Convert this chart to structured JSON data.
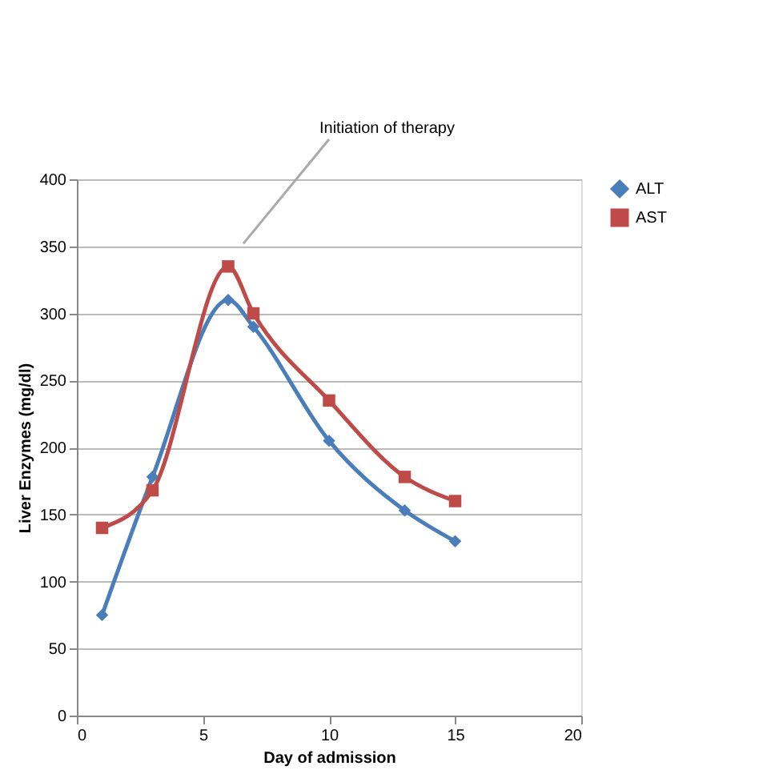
{
  "chart_data": {
    "type": "line",
    "xlabel": "Day of admission",
    "ylabel": "Liver Enzymes (mg/dl)",
    "xlim": [
      0,
      20
    ],
    "xticks": [
      0,
      5,
      10,
      15,
      20
    ],
    "ylim": [
      0,
      400
    ],
    "yticks": [
      0,
      50,
      100,
      150,
      200,
      250,
      300,
      350,
      400
    ],
    "x": [
      1,
      3,
      6,
      7,
      10,
      13,
      15
    ],
    "series": [
      {
        "name": "ALT",
        "color": "#4a7ebb",
        "marker": "diamond",
        "values": [
          75,
          178,
          310,
          290,
          205,
          153,
          130
        ]
      },
      {
        "name": "AST",
        "color": "#be4b48",
        "marker": "square",
        "values": [
          140,
          168,
          335,
          300,
          235,
          178,
          160
        ]
      }
    ],
    "annotations": [
      "Initiation of therapy"
    ],
    "grid": "y",
    "legend": "right"
  }
}
